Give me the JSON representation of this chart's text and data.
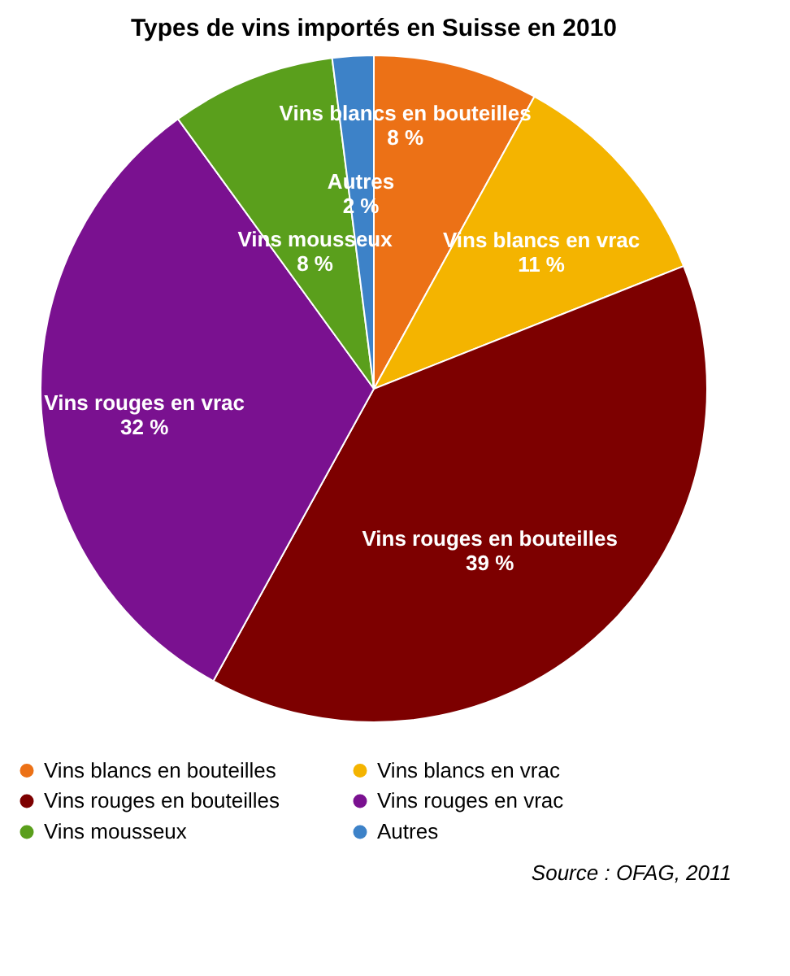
{
  "chart_data": {
    "type": "pie",
    "title": "Types de vins importés en Suisse en 2010",
    "categories": [
      "Vins blancs en bouteilles",
      "Vins blancs en vrac",
      "Vins rouges en bouteilles",
      "Vins rouges en vrac",
      "Vins mousseux",
      "Autres"
    ],
    "values": [
      8,
      11,
      39,
      32,
      8,
      2
    ],
    "value_labels": [
      "8 %",
      "11 %",
      "39 %",
      "32 %",
      "8 %",
      "2 %"
    ],
    "colors": [
      "#ec7116",
      "#f4b400",
      "#7d0000",
      "#7a1190",
      "#5a9f1c",
      "#3d82c8"
    ],
    "legend": "bottom",
    "annotations": [
      "Source : OFAG, 2011"
    ]
  }
}
